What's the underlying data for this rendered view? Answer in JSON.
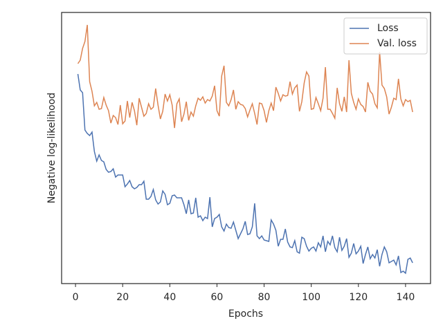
{
  "chart_data": {
    "type": "line",
    "xlabel": "Epochs",
    "ylabel": "Negative log-likelihood",
    "x": [
      1,
      2,
      3,
      4,
      5,
      6,
      7,
      8,
      9,
      10,
      11,
      12,
      13,
      14,
      15,
      16,
      17,
      18,
      19,
      20,
      21,
      22,
      23,
      24,
      25,
      26,
      27,
      28,
      29,
      30,
      31,
      32,
      33,
      34,
      35,
      36,
      37,
      38,
      39,
      40,
      41,
      42,
      43,
      44,
      45,
      46,
      47,
      48,
      49,
      50,
      51,
      52,
      53,
      54,
      55,
      56,
      57,
      58,
      59,
      60,
      61,
      62,
      63,
      64,
      65,
      66,
      67,
      68,
      69,
      70,
      71,
      72,
      73,
      74,
      75,
      76,
      77,
      78,
      79,
      80,
      81,
      82,
      83,
      84,
      85,
      86,
      87,
      88,
      89,
      90,
      91,
      92,
      93,
      94,
      95,
      96,
      97,
      98,
      99,
      100,
      101,
      102,
      103,
      104,
      105,
      106,
      107,
      108,
      109,
      110,
      111,
      112,
      113,
      114,
      115,
      116,
      117,
      118,
      119,
      120,
      121,
      122,
      123,
      124,
      125,
      126,
      127,
      128,
      129,
      130,
      131,
      132,
      133,
      134,
      135,
      136,
      137,
      138,
      139,
      140,
      141,
      142,
      143
    ],
    "series": [
      {
        "name": "Loss",
        "color": "#4c72b0",
        "values": [
          303,
          280,
          276,
          222,
          217,
          214,
          219,
          191,
          177,
          186,
          178,
          176,
          165,
          161,
          162,
          166,
          154,
          157,
          157,
          157,
          140,
          144,
          149,
          140,
          137,
          139,
          143,
          143,
          148,
          122,
          122,
          126,
          136,
          121,
          115,
          118,
          134,
          129,
          114,
          116,
          127,
          128,
          124,
          124,
          124,
          114,
          101,
          121,
          101,
          102,
          124,
          96,
          98,
          91,
          96,
          94,
          125,
          82,
          94,
          96,
          100,
          82,
          76,
          86,
          81,
          80,
          89,
          77,
          65,
          72,
          79,
          90,
          71,
          72,
          82,
          116,
          69,
          65,
          69,
          63,
          62,
          61,
          92,
          86,
          77,
          54,
          64,
          64,
          79,
          60,
          53,
          52,
          62,
          46,
          44,
          67,
          65,
          54,
          47,
          51,
          53,
          47,
          59,
          53,
          69,
          46,
          61,
          56,
          69,
          52,
          46,
          67,
          48,
          54,
          65,
          38,
          44,
          58,
          43,
          47,
          54,
          29,
          42,
          53,
          36,
          42,
          37,
          49,
          25,
          42,
          53,
          46,
          30,
          32,
          34,
          27,
          40,
          16,
          18,
          15,
          35,
          37,
          30
        ]
      },
      {
        "name": "Val. loss",
        "color": "#dd8452",
        "values": [
          318,
          323,
          340,
          350,
          374,
          292,
          278,
          257,
          262,
          252,
          253,
          269,
          258,
          250,
          232,
          243,
          240,
          230,
          258,
          231,
          235,
          264,
          240,
          262,
          250,
          229,
          268,
          255,
          242,
          246,
          260,
          252,
          255,
          282,
          258,
          238,
          249,
          274,
          264,
          273,
          258,
          225,
          260,
          267,
          234,
          245,
          263,
          236,
          248,
          242,
          257,
          268,
          265,
          270,
          261,
          266,
          264,
          271,
          286,
          250,
          242,
          300,
          315,
          262,
          257,
          266,
          280,
          252,
          263,
          259,
          258,
          253,
          241,
          251,
          260,
          246,
          230,
          261,
          260,
          250,
          233,
          250,
          261,
          250,
          284,
          275,
          264,
          273,
          271,
          272,
          292,
          274,
          283,
          287,
          249,
          263,
          290,
          306,
          300,
          252,
          253,
          269,
          260,
          250,
          268,
          313,
          252,
          252,
          246,
          239,
          283,
          260,
          249,
          270,
          248,
          323,
          275,
          262,
          252,
          267,
          259,
          256,
          248,
          291,
          278,
          274,
          260,
          254,
          335,
          287,
          282,
          270,
          245,
          255,
          268,
          266,
          296,
          267,
          257,
          266,
          263,
          265,
          248
        ]
      }
    ],
    "xlim": [
      -5.9,
      150.6
    ],
    "xticks": [
      0,
      20,
      40,
      60,
      80,
      100,
      120,
      140
    ],
    "ylim": [
      0,
      392
    ],
    "legend": "upper right"
  }
}
